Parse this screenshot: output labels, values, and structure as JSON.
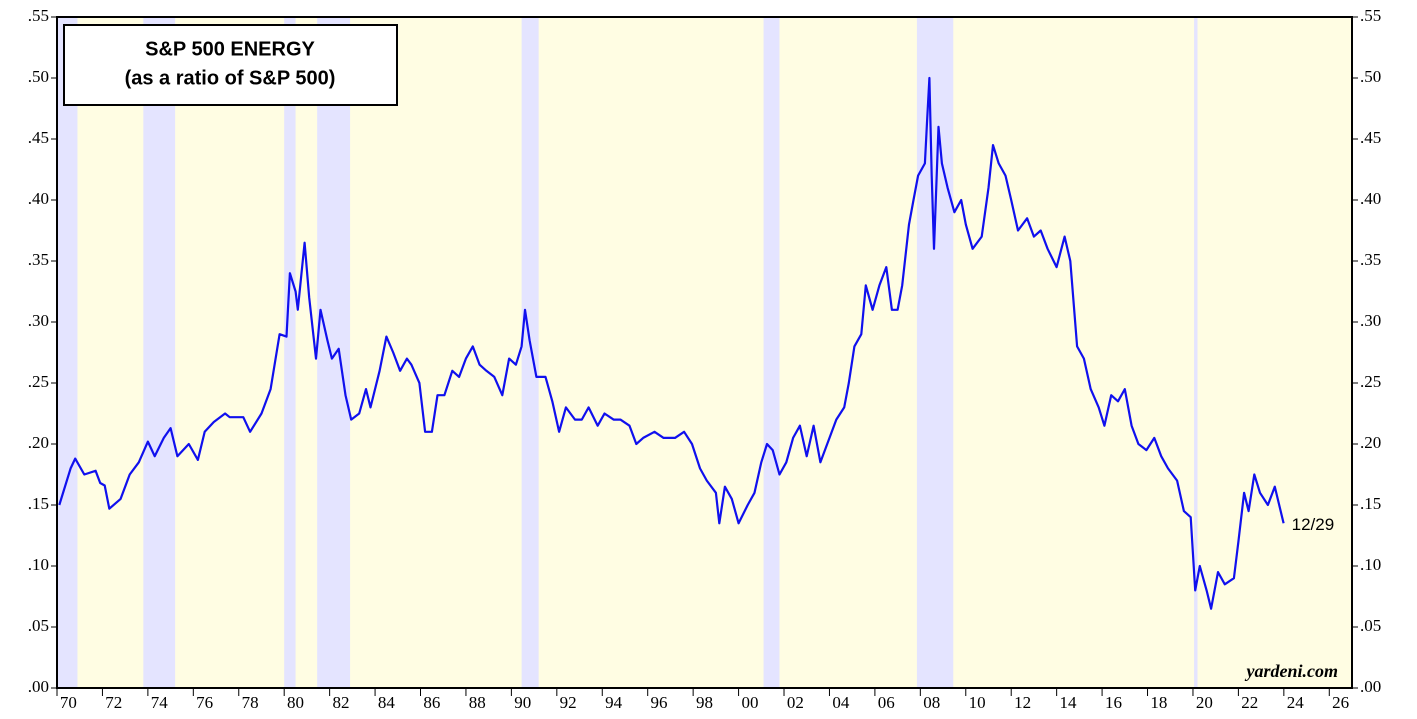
{
  "chart_data": {
    "type": "line",
    "title": "S&P 500 ENERGY",
    "subtitle": "(as a ratio of S&P 500)",
    "annotation": "12/29",
    "source": "yardeni.com",
    "xlim": [
      1970,
      2027
    ],
    "ylim": [
      0,
      0.55
    ],
    "xticks": [
      {
        "value": 1970,
        "label": "70"
      },
      {
        "value": 1972,
        "label": "72"
      },
      {
        "value": 1974,
        "label": "74"
      },
      {
        "value": 1976,
        "label": "76"
      },
      {
        "value": 1978,
        "label": "78"
      },
      {
        "value": 1980,
        "label": "80"
      },
      {
        "value": 1982,
        "label": "82"
      },
      {
        "value": 1984,
        "label": "84"
      },
      {
        "value": 1986,
        "label": "86"
      },
      {
        "value": 1988,
        "label": "88"
      },
      {
        "value": 1990,
        "label": "90"
      },
      {
        "value": 1992,
        "label": "92"
      },
      {
        "value": 1994,
        "label": "94"
      },
      {
        "value": 1996,
        "label": "96"
      },
      {
        "value": 1998,
        "label": "98"
      },
      {
        "value": 2000,
        "label": "00"
      },
      {
        "value": 2002,
        "label": "02"
      },
      {
        "value": 2004,
        "label": "04"
      },
      {
        "value": 2006,
        "label": "06"
      },
      {
        "value": 2008,
        "label": "08"
      },
      {
        "value": 2010,
        "label": "10"
      },
      {
        "value": 2012,
        "label": "12"
      },
      {
        "value": 2014,
        "label": "14"
      },
      {
        "value": 2016,
        "label": "16"
      },
      {
        "value": 2018,
        "label": "18"
      },
      {
        "value": 2020,
        "label": "20"
      },
      {
        "value": 2022,
        "label": "22"
      },
      {
        "value": 2024,
        "label": "24"
      },
      {
        "value": 2026,
        "label": "26"
      }
    ],
    "yticks": [
      {
        "value": 0,
        "label": ".00"
      },
      {
        "value": 0.05,
        "label": ".05"
      },
      {
        "value": 0.1,
        "label": ".10"
      },
      {
        "value": 0.15,
        "label": ".15"
      },
      {
        "value": 0.2,
        "label": ".20"
      },
      {
        "value": 0.25,
        "label": ".25"
      },
      {
        "value": 0.3,
        "label": ".30"
      },
      {
        "value": 0.35,
        "label": ".35"
      },
      {
        "value": 0.4,
        "label": ".40"
      },
      {
        "value": 0.45,
        "label": ".45"
      },
      {
        "value": 0.5,
        "label": ".50"
      },
      {
        "value": 0.55,
        "label": ".55"
      }
    ],
    "shaded_periods": [
      [
        1970.0,
        1970.9
      ],
      [
        1973.8,
        1975.2
      ],
      [
        1980.0,
        1980.5
      ],
      [
        1981.45,
        1982.9
      ],
      [
        1990.45,
        1991.2
      ],
      [
        2001.1,
        2001.8
      ],
      [
        2007.85,
        2009.45
      ],
      [
        2020.05,
        2020.2
      ]
    ],
    "shade_color": "#e4e4ff",
    "background_color": "#fffde3",
    "series": [
      {
        "color": "#1010ee",
        "x": [
          1970.1,
          1970.6,
          1970.8,
          1971.2,
          1971.7,
          1971.9,
          1972.1,
          1972.3,
          1972.8,
          1973.2,
          1973.6,
          1974.0,
          1974.3,
          1974.7,
          1975.0,
          1975.3,
          1975.8,
          1976.2,
          1976.5,
          1976.9,
          1977.4,
          1977.6,
          1978.2,
          1978.5,
          1979.0,
          1979.4,
          1979.8,
          1980.1,
          1980.25,
          1980.5,
          1980.6,
          1980.9,
          1981.1,
          1981.4,
          1981.6,
          1981.9,
          1982.1,
          1982.4,
          1982.7,
          1982.95,
          1983.3,
          1983.6,
          1983.8,
          1984.2,
          1984.5,
          1984.8,
          1985.1,
          1985.4,
          1985.6,
          1985.95,
          1986.2,
          1986.5,
          1986.75,
          1987.05,
          1987.4,
          1987.7,
          1988.0,
          1988.3,
          1988.6,
          1988.9,
          1989.25,
          1989.6,
          1989.9,
          1990.2,
          1990.45,
          1990.6,
          1990.8,
          1991.1,
          1991.5,
          1991.8,
          1992.1,
          1992.4,
          1992.8,
          1993.1,
          1993.4,
          1993.8,
          1994.1,
          1994.5,
          1994.8,
          1995.2,
          1995.5,
          1995.8,
          1996.3,
          1996.7,
          1997.2,
          1997.6,
          1997.95,
          1998.3,
          1998.6,
          1999.0,
          1999.15,
          1999.4,
          1999.7,
          2000.0,
          2000.4,
          2000.7,
          2001.0,
          2001.25,
          2001.5,
          2001.8,
          2002.1,
          2002.4,
          2002.7,
          2003.0,
          2003.3,
          2003.6,
          2004.0,
          2004.3,
          2004.65,
          2004.85,
          2005.1,
          2005.4,
          2005.6,
          2005.9,
          2006.2,
          2006.5,
          2006.75,
          2007.0,
          2007.2,
          2007.5,
          2007.7,
          2007.9,
          2008.2,
          2008.3,
          2008.4,
          2008.5,
          2008.6,
          2008.8,
          2008.95,
          2009.2,
          2009.5,
          2009.8,
          2010.0,
          2010.3,
          2010.7,
          2011.0,
          2011.2,
          2011.45,
          2011.75,
          2012.0,
          2012.3,
          2012.7,
          2013.0,
          2013.3,
          2013.6,
          2014.0,
          2014.35,
          2014.6,
          2014.9,
          2015.2,
          2015.5,
          2015.85,
          2016.1,
          2016.4,
          2016.7,
          2017.0,
          2017.3,
          2017.6,
          2017.95,
          2018.3,
          2018.6,
          2018.9,
          2019.3,
          2019.6,
          2019.9,
          2020.1,
          2020.3,
          2020.6,
          2020.8,
          2021.1,
          2021.4,
          2021.8,
          2022.0,
          2022.25,
          2022.45,
          2022.7,
          2022.95,
          2023.3,
          2023.6,
          2023.99
        ],
        "values": [
          0.15,
          0.18,
          0.188,
          0.175,
          0.178,
          0.168,
          0.166,
          0.147,
          0.155,
          0.175,
          0.185,
          0.202,
          0.19,
          0.205,
          0.213,
          0.19,
          0.2,
          0.187,
          0.21,
          0.218,
          0.225,
          0.222,
          0.222,
          0.21,
          0.225,
          0.245,
          0.29,
          0.288,
          0.34,
          0.325,
          0.31,
          0.365,
          0.32,
          0.27,
          0.31,
          0.285,
          0.27,
          0.278,
          0.24,
          0.22,
          0.225,
          0.245,
          0.23,
          0.26,
          0.288,
          0.275,
          0.26,
          0.27,
          0.265,
          0.25,
          0.21,
          0.21,
          0.24,
          0.24,
          0.26,
          0.255,
          0.27,
          0.28,
          0.265,
          0.26,
          0.255,
          0.24,
          0.27,
          0.265,
          0.28,
          0.31,
          0.285,
          0.255,
          0.255,
          0.235,
          0.21,
          0.23,
          0.22,
          0.22,
          0.23,
          0.215,
          0.225,
          0.22,
          0.22,
          0.215,
          0.2,
          0.205,
          0.21,
          0.205,
          0.205,
          0.21,
          0.2,
          0.18,
          0.17,
          0.16,
          0.135,
          0.165,
          0.155,
          0.135,
          0.15,
          0.16,
          0.185,
          0.2,
          0.195,
          0.175,
          0.185,
          0.205,
          0.215,
          0.19,
          0.215,
          0.185,
          0.205,
          0.22,
          0.23,
          0.25,
          0.28,
          0.29,
          0.33,
          0.31,
          0.33,
          0.345,
          0.31,
          0.31,
          0.33,
          0.38,
          0.4,
          0.42,
          0.43,
          0.465,
          0.5,
          0.42,
          0.36,
          0.46,
          0.43,
          0.41,
          0.39,
          0.4,
          0.38,
          0.36,
          0.37,
          0.41,
          0.445,
          0.43,
          0.42,
          0.4,
          0.375,
          0.385,
          0.37,
          0.375,
          0.36,
          0.345,
          0.37,
          0.35,
          0.28,
          0.27,
          0.245,
          0.23,
          0.215,
          0.24,
          0.235,
          0.245,
          0.215,
          0.2,
          0.195,
          0.205,
          0.19,
          0.18,
          0.17,
          0.145,
          0.14,
          0.08,
          0.1,
          0.08,
          0.065,
          0.095,
          0.085,
          0.09,
          0.12,
          0.16,
          0.145,
          0.175,
          0.16,
          0.15,
          0.165,
          0.135
        ]
      }
    ]
  }
}
